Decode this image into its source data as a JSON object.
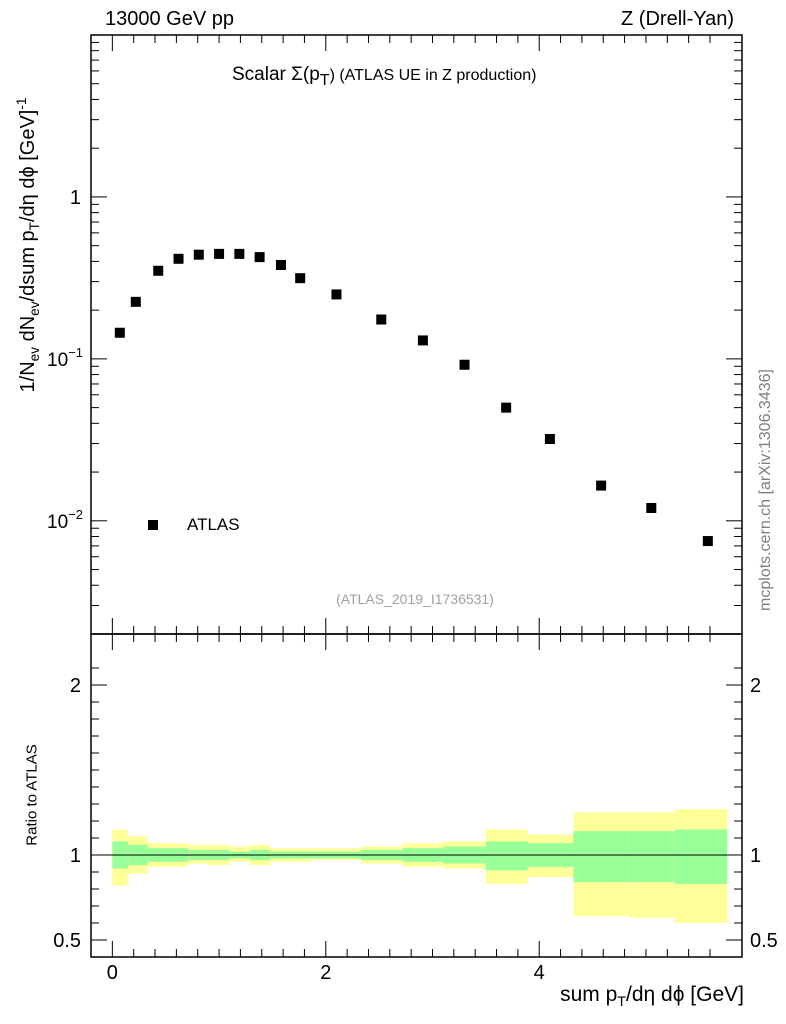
{
  "header": {
    "left": "13000 GeV pp",
    "right": "Z (Drell-Yan)"
  },
  "side_note": "mcplots.cern.ch [arXiv:1306.3436]",
  "title": {
    "prefix": "Scalar Σ(p",
    "sub": "T",
    "suffix": ") (ATLAS UE in Z production)"
  },
  "reference_label": "(ATLAS_2019_I1736531)",
  "ylabel_main": {
    "p1": "1/N",
    "s1": "ev",
    "p2": " dN",
    "s2": "ev",
    "p3": "/dsum p",
    "s3": "T",
    "p4": "/dη dϕ  [GeV]",
    "sup": "-1"
  },
  "ylabel_ratio": "Ratio to ATLAS",
  "xlabel": {
    "p1": "sum p",
    "sub": "T",
    "p2": "/dη dϕ [GeV]"
  },
  "colors": {
    "band_outer": "#ffff99",
    "band_inner": "#99ff99",
    "markers": "#000000"
  },
  "chart_data": {
    "type": "scatter",
    "x_range": [
      -0.2,
      5.9
    ],
    "main": {
      "yscale": "log",
      "ylim": [
        0.002,
        10
      ],
      "ytick_labels": [
        {
          "value": 1,
          "label": "1"
        },
        {
          "value": 0.1,
          "label": "10",
          "exp": "−1"
        },
        {
          "value": 0.01,
          "label": "10",
          "exp": "−2"
        }
      ],
      "legend": "ATLAS",
      "series": [
        {
          "name": "ATLAS",
          "x": [
            0.07,
            0.22,
            0.43,
            0.62,
            0.81,
            1.0,
            1.19,
            1.38,
            1.58,
            1.76,
            2.1,
            2.52,
            2.91,
            3.3,
            3.69,
            4.1,
            4.58,
            5.05,
            5.58
          ],
          "y": [
            0.145,
            0.225,
            0.35,
            0.415,
            0.44,
            0.445,
            0.445,
            0.425,
            0.38,
            0.315,
            0.25,
            0.175,
            0.13,
            0.092,
            0.05,
            0.032,
            0.0165,
            0.012,
            0.0075
          ]
        }
      ]
    },
    "ratio": {
      "ylim": [
        0.4,
        2.3
      ],
      "ytick_labels": [
        {
          "value": 0.5,
          "label": "0.5"
        },
        {
          "value": 1,
          "label": "1"
        },
        {
          "value": 2,
          "label": "2"
        }
      ],
      "xtick_labels": [
        {
          "value": 0,
          "label": "0"
        },
        {
          "value": 2,
          "label": "2"
        },
        {
          "value": 4,
          "label": "4"
        }
      ],
      "bins": [
        {
          "lo": 0.0,
          "hi": 0.15,
          "inner": [
            0.92,
            1.08
          ],
          "outer": [
            0.82,
            1.15
          ]
        },
        {
          "lo": 0.15,
          "hi": 0.33,
          "inner": [
            0.94,
            1.06
          ],
          "outer": [
            0.89,
            1.11
          ]
        },
        {
          "lo": 0.33,
          "hi": 0.52,
          "inner": [
            0.96,
            1.04
          ],
          "outer": [
            0.93,
            1.07
          ]
        },
        {
          "lo": 0.52,
          "hi": 0.71,
          "inner": [
            0.96,
            1.04
          ],
          "outer": [
            0.93,
            1.07
          ]
        },
        {
          "lo": 0.71,
          "hi": 0.9,
          "inner": [
            0.97,
            1.03
          ],
          "outer": [
            0.95,
            1.06
          ]
        },
        {
          "lo": 0.9,
          "hi": 1.1,
          "inner": [
            0.97,
            1.03
          ],
          "outer": [
            0.94,
            1.06
          ]
        },
        {
          "lo": 1.1,
          "hi": 1.29,
          "inner": [
            0.98,
            1.02
          ],
          "outer": [
            0.96,
            1.05
          ]
        },
        {
          "lo": 1.29,
          "hi": 1.48,
          "inner": [
            0.97,
            1.03
          ],
          "outer": [
            0.94,
            1.06
          ]
        },
        {
          "lo": 1.48,
          "hi": 1.67,
          "inner": [
            0.98,
            1.02
          ],
          "outer": [
            0.96,
            1.04
          ]
        },
        {
          "lo": 1.67,
          "hi": 1.86,
          "inner": [
            0.98,
            1.02
          ],
          "outer": [
            0.96,
            1.04
          ]
        },
        {
          "lo": 1.86,
          "hi": 2.33,
          "inner": [
            0.98,
            1.02
          ],
          "outer": [
            0.97,
            1.04
          ]
        },
        {
          "lo": 2.33,
          "hi": 2.72,
          "inner": [
            0.97,
            1.03
          ],
          "outer": [
            0.95,
            1.05
          ]
        },
        {
          "lo": 2.72,
          "hi": 3.1,
          "inner": [
            0.96,
            1.04
          ],
          "outer": [
            0.93,
            1.07
          ]
        },
        {
          "lo": 3.1,
          "hi": 3.5,
          "inner": [
            0.95,
            1.05
          ],
          "outer": [
            0.92,
            1.08
          ]
        },
        {
          "lo": 3.5,
          "hi": 3.89,
          "inner": [
            0.91,
            1.08
          ],
          "outer": [
            0.83,
            1.15
          ]
        },
        {
          "lo": 3.89,
          "hi": 4.32,
          "inner": [
            0.93,
            1.07
          ],
          "outer": [
            0.87,
            1.12
          ]
        },
        {
          "lo": 4.32,
          "hi": 4.84,
          "inner": [
            0.84,
            1.14
          ],
          "outer": [
            0.64,
            1.25
          ]
        },
        {
          "lo": 4.84,
          "hi": 5.27,
          "inner": [
            0.84,
            1.14
          ],
          "outer": [
            0.63,
            1.25
          ]
        },
        {
          "lo": 5.27,
          "hi": 5.76,
          "inner": [
            0.83,
            1.15
          ],
          "outer": [
            0.6,
            1.27
          ]
        }
      ],
      "reference_line": 1
    }
  }
}
